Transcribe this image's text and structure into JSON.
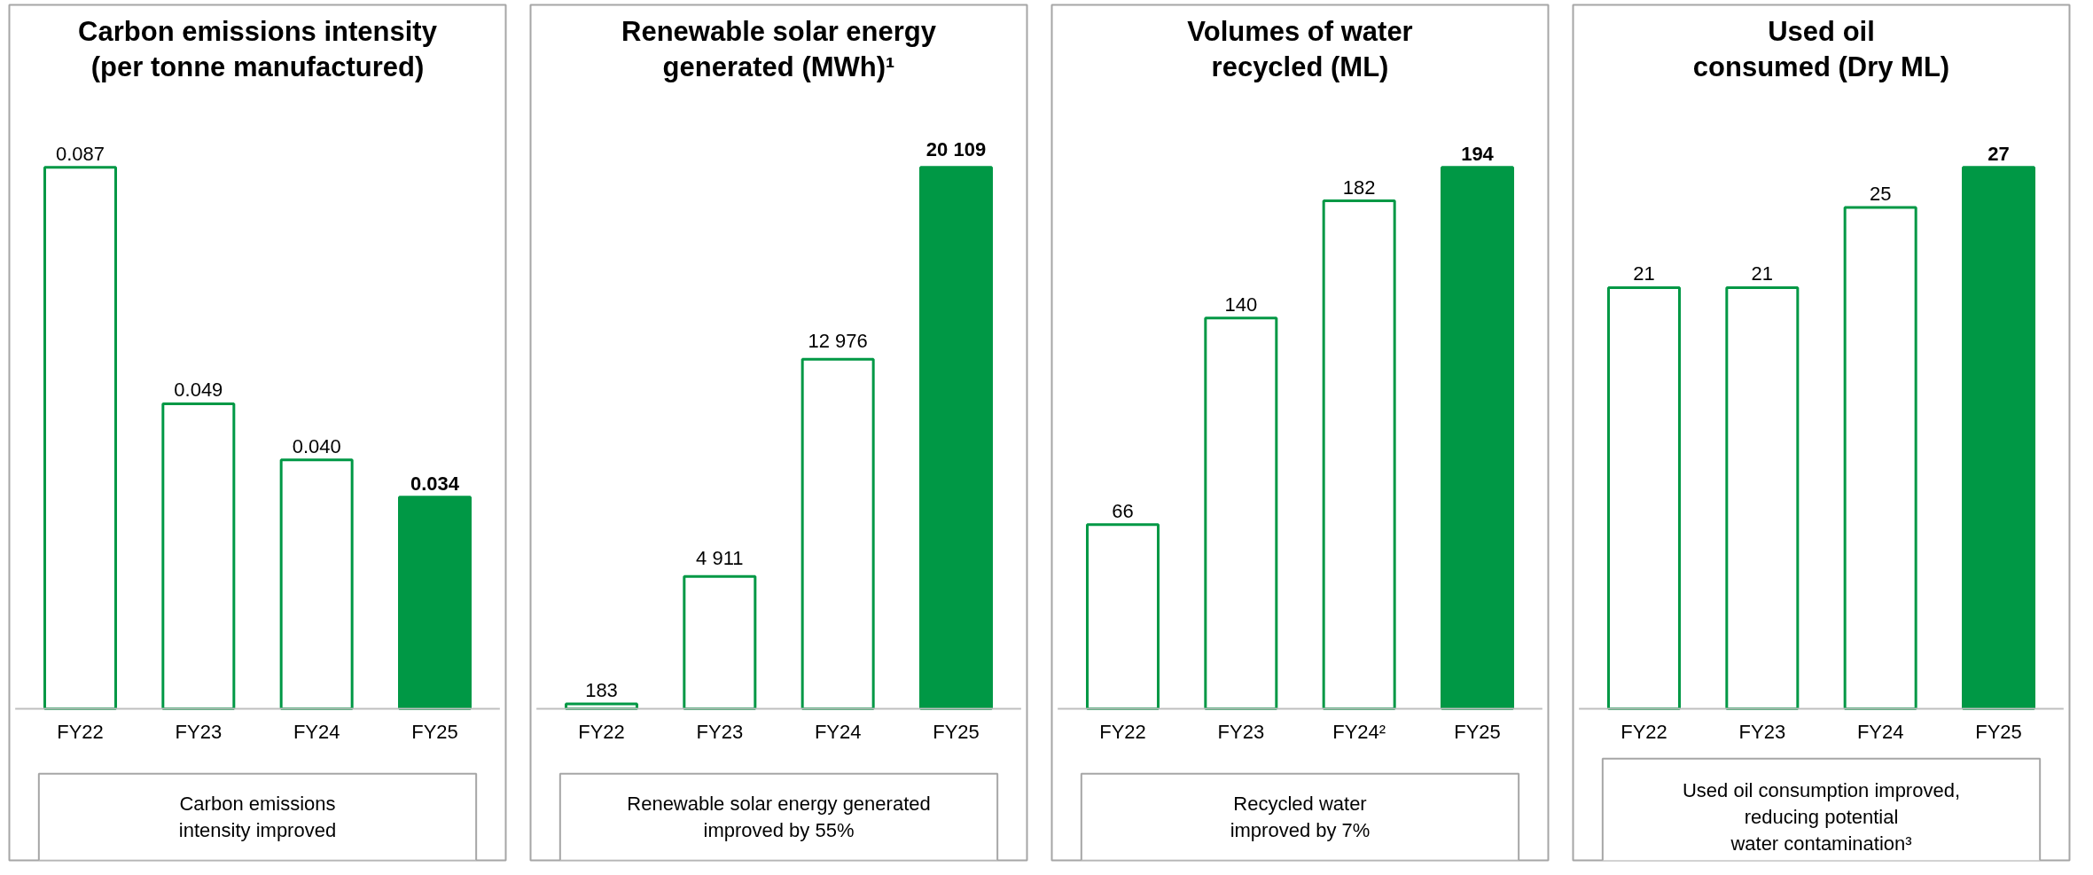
{
  "chart_data": [
    {
      "type": "bar",
      "title": "Carbon emissions intensity (per tonne manufactured)",
      "categories": [
        "FY22",
        "FY23",
        "FY24",
        "FY25"
      ],
      "series": [
        {
          "color": "#009845",
          "values": [
            0.087,
            0.049,
            0.04,
            0.034
          ],
          "colors": [
            "#ffffff",
            "#ffffff",
            "#ffffff",
            "#009845"
          ],
          "value_labels": [
            "0.087",
            "0.049",
            "0.040",
            "0.034"
          ]
        }
      ],
      "annotations": [
        "Carbon emissions",
        "intensity improved"
      ]
    },
    {
      "type": "bar",
      "title": "Renewable solar energy generated (MWh)¹",
      "categories": [
        "FY22",
        "FY23",
        "FY24",
        "FY25"
      ],
      "series": [
        {
          "color": "#009845",
          "values": [
            183,
            4911,
            12976,
            20109
          ],
          "colors": [
            "#ffffff",
            "#ffffff",
            "#ffffff",
            "#009845"
          ],
          "value_labels": [
            "183",
            "4 911",
            "12 976",
            "20 109"
          ]
        }
      ],
      "annotations": [
        "Renewable solar energy generated",
        "improved by 55%"
      ]
    },
    {
      "type": "bar",
      "title": "Volumes of water recycled (ML)",
      "categories": [
        "FY22",
        "FY23",
        "FY24²",
        "FY25"
      ],
      "series": [
        {
          "color": "#009845",
          "values": [
            66,
            140,
            182,
            194
          ],
          "colors": [
            "#ffffff",
            "#ffffff",
            "#ffffff",
            "#009845"
          ],
          "value_labels": [
            "66",
            "140",
            "182",
            "194"
          ]
        }
      ],
      "annotations": [
        "Recycled water",
        "improved by 7%"
      ]
    },
    {
      "type": "bar",
      "title": "Used oil consumed (Dry ML)",
      "categories": [
        "FY22",
        "FY23",
        "FY24",
        "FY25"
      ],
      "series": [
        {
          "color": "#009845",
          "values": [
            21,
            21,
            25,
            27
          ],
          "colors": [
            "#ffffff",
            "#ffffff",
            "#ffffff",
            "#009845"
          ],
          "value_labels": [
            "21",
            "21",
            "25",
            "27"
          ]
        }
      ],
      "annotations": [
        "Used oil consumption improved,",
        "reducing potential",
        "water contamination³"
      ]
    }
  ]
}
